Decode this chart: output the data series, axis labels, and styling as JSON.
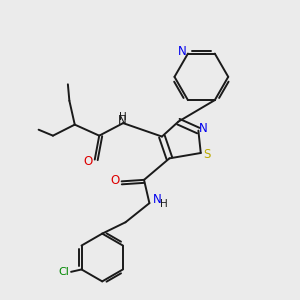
{
  "bg_color": "#ebebeb",
  "bond_color": "#1a1a1a",
  "colors": {
    "N": "#0000ee",
    "O": "#dd0000",
    "S": "#bbaa00",
    "Cl": "#008800",
    "C": "#1a1a1a"
  },
  "figsize": [
    3.0,
    3.0
  ],
  "dpi": 100
}
